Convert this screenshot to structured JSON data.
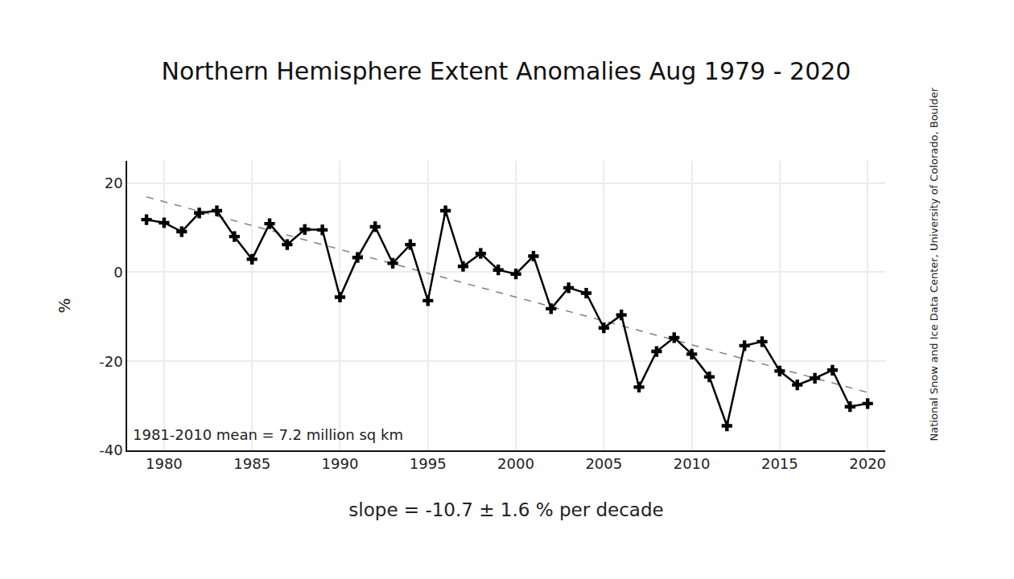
{
  "chart_data": {
    "type": "line",
    "title": "Northern Hemisphere Extent Anomalies Aug 1979 - 2020",
    "x_label": "slope = -10.7 ± 1.6 % per decade",
    "y_label": "%",
    "annotations": [
      "1981-2010 mean = 7.2 million sq km"
    ],
    "source": "National Snow and Ice Data Center, University of Colorado, Boulder",
    "x": [
      1979,
      1980,
      1981,
      1982,
      1983,
      1984,
      1985,
      1986,
      1987,
      1988,
      1989,
      1990,
      1991,
      1992,
      1993,
      1994,
      1995,
      1996,
      1997,
      1998,
      1999,
      2000,
      2001,
      2002,
      2003,
      2004,
      2005,
      2006,
      2007,
      2008,
      2009,
      2010,
      2011,
      2012,
      2013,
      2014,
      2015,
      2016,
      2017,
      2018,
      2019,
      2020
    ],
    "series": [
      {
        "color": "#000000",
        "marker": "cross",
        "line_style": "solid",
        "values": [
          11.8,
          11.1,
          9.1,
          13.3,
          13.8,
          8.0,
          2.9,
          10.9,
          6.2,
          9.6,
          9.5,
          -5.6,
          3.3,
          10.2,
          2.0,
          6.2,
          -6.4,
          13.8,
          1.3,
          4.2,
          0.5,
          -0.4,
          3.6,
          -8.2,
          -3.5,
          -4.7,
          -12.5,
          -9.6,
          -25.8,
          -17.8,
          -14.7,
          -18.4,
          -23.5,
          -34.5,
          -16.5,
          -15.6,
          -22.2,
          -25.3,
          -23.8,
          -22.0,
          -30.2,
          -29.5
        ]
      },
      {
        "color": "#808080",
        "line_style": "dash",
        "x": [
          1979,
          2020
        ],
        "values": [
          16.9,
          -27.0
        ]
      }
    ],
    "xlim": [
      1977.9,
      2021
    ],
    "ylim": [
      -40,
      25
    ],
    "xticks": [
      1980,
      1985,
      1990,
      1995,
      2000,
      2005,
      2010,
      2015,
      2020
    ],
    "yticks": [
      -40,
      -20,
      0,
      20
    ],
    "grid": true
  }
}
